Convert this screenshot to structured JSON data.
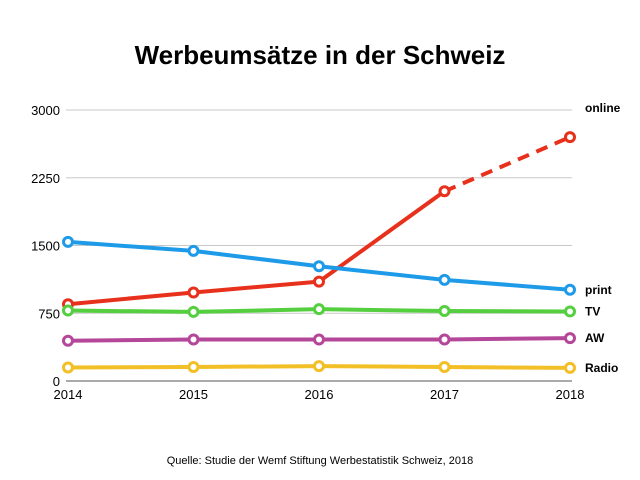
{
  "chart_data": {
    "type": "line",
    "title": "Werbeumsätze in der Schweiz",
    "xlabel": "",
    "ylabel": "",
    "x": [
      "2014",
      "2015",
      "2016",
      "2017",
      "2018"
    ],
    "ylim": [
      0,
      3000
    ],
    "yticks": [
      "0",
      "750",
      "1500",
      "2250",
      "3000"
    ],
    "grid": true,
    "series": [
      {
        "name": "online",
        "color": "#e8311c",
        "values": [
          850,
          980,
          1100,
          2100,
          2700
        ],
        "dashed_from_index": 3
      },
      {
        "name": "print",
        "color": "#1e9be8",
        "values": [
          1540,
          1440,
          1270,
          1120,
          1010
        ]
      },
      {
        "name": "TV",
        "color": "#55cf3f",
        "values": [
          780,
          765,
          795,
          775,
          770
        ]
      },
      {
        "name": "AW",
        "color": "#b5479a",
        "values": [
          445,
          460,
          460,
          460,
          475
        ]
      },
      {
        "name": "Radio",
        "color": "#f2bf26",
        "values": [
          150,
          155,
          165,
          155,
          145
        ]
      }
    ],
    "source": "Quelle: Studie der Wemf Stiftung Werbestatistik Schweiz, 2018"
  }
}
